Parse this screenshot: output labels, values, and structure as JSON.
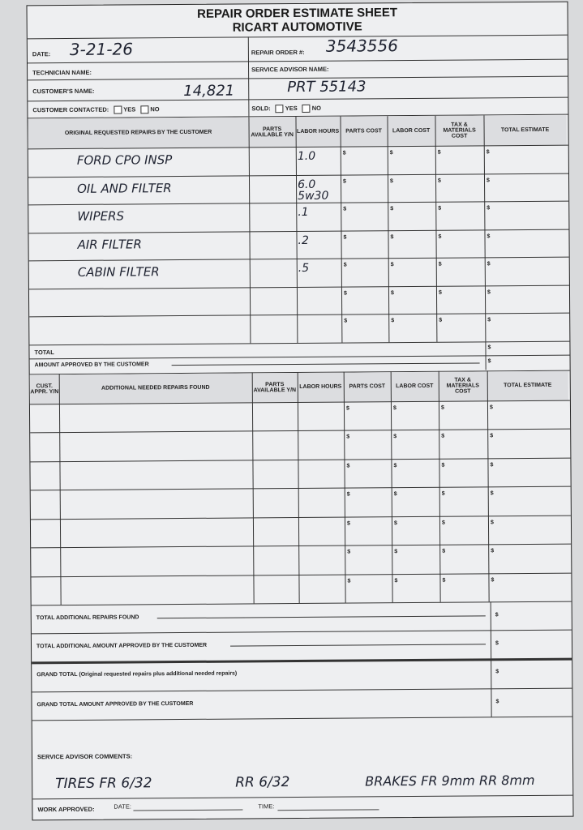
{
  "header": {
    "title": "REPAIR ORDER ESTIMATE SHEET",
    "subtitle": "RICART AUTOMOTIVE"
  },
  "info": {
    "date_label": "DATE:",
    "date_value": "3-21-26",
    "repair_order_label": "REPAIR ORDER #:",
    "repair_order_value": "3543556",
    "technician_label": "TECHNICIAN NAME:",
    "service_advisor_label": "SERVICE ADVISOR NAME:",
    "customer_label": "CUSTOMER'S NAME:",
    "customer_value": "14,821",
    "customer_value_right": "PRT 55143",
    "contacted_label": "CUSTOMER CONTACTED:",
    "yes": "YES",
    "no": "NO",
    "sold_label": "SOLD:"
  },
  "original": {
    "headers": [
      "ORIGINAL REQUESTED REPAIRS BY THE CUSTOMER",
      "PARTS AVAILABLE Y/N",
      "LABOR HOURS",
      "PARTS COST",
      "LABOR COST",
      "TAX & MATERIALS COST",
      "TOTAL ESTIMATE"
    ],
    "rows": [
      {
        "repair": "FORD CPO INSP",
        "labor_hours": "1.0"
      },
      {
        "repair": "OIL AND FILTER",
        "labor_hours": "6.0 5w30"
      },
      {
        "repair": "WIPERS",
        "labor_hours": ".1"
      },
      {
        "repair": "AIR FILTER",
        "labor_hours": ".2"
      },
      {
        "repair": "CABIN FILTER",
        "labor_hours": ".5"
      },
      {
        "repair": "",
        "labor_hours": ""
      },
      {
        "repair": "",
        "labor_hours": ""
      }
    ],
    "currency": "$",
    "total_label": "TOTAL",
    "approved_label": "AMOUNT APPROVED BY THE CUSTOMER"
  },
  "additional": {
    "headers": [
      "CUST. APPR. Y/N",
      "ADDITIONAL NEEDED REPAIRS FOUND",
      "PARTS AVAILABLE Y/N",
      "LABOR HOURS",
      "PARTS COST",
      "LABOR COST",
      "TAX & MATERIALS COST",
      "TOTAL ESTIMATE"
    ],
    "row_count": 7,
    "total_label": "TOTAL ADDITIONAL REPAIRS FOUND",
    "approved_label": "TOTAL ADDITIONAL AMOUNT APPROVED BY THE CUSTOMER"
  },
  "grand": {
    "total_label": "GRAND TOTAL (Original requested repairs plus additional needed repairs)",
    "approved_label": "GRAND TOTAL AMOUNT APPROVED BY THE CUSTOMER"
  },
  "comments": {
    "label": "SERVICE ADVISOR COMMENTS:",
    "note_tires": "TIRES FR 6/32",
    "note_rr": "RR 6/32",
    "note_brakes": "BRAKES FR 9mm RR 8mm"
  },
  "footer": {
    "work_approved_label": "WORK APPROVED:",
    "date_label": "DATE:",
    "time_label": "TIME:"
  }
}
